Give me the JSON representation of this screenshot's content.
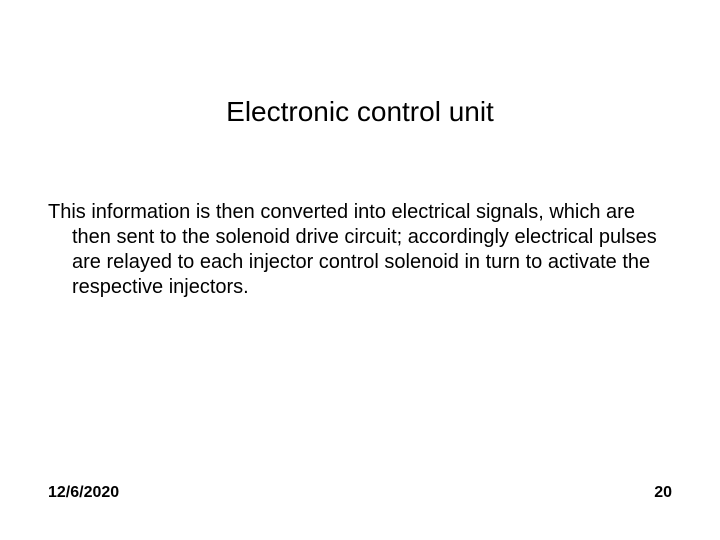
{
  "slide": {
    "title": "Electronic control unit",
    "body": "This information is then converted into electrical signals, which are then sent to the solenoid drive circuit; accordingly electrical pulses are relayed to each injector control solenoid in turn to activate the respective injectors.",
    "footer": {
      "date": "12/6/2020",
      "page_number": "20"
    }
  },
  "styling": {
    "background_color": "#ffffff",
    "text_color": "#000000",
    "title_fontsize": 28,
    "body_fontsize": 20,
    "footer_fontsize": 16,
    "font_family": "Arial"
  }
}
